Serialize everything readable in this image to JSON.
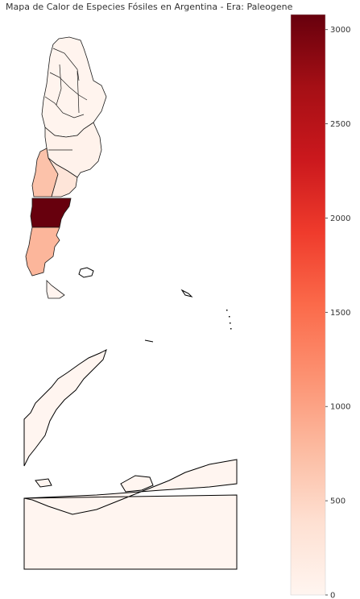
{
  "title": "Mapa de Calor de Especies Fósiles en Argentina - Era: Paleogene",
  "colormap": {
    "name": "Reds",
    "stops": [
      "#fff5f0",
      "#fee0d2",
      "#fcbba1",
      "#fc9272",
      "#fb6a4a",
      "#ef3b2c",
      "#cb181d",
      "#a50f15",
      "#67000d"
    ],
    "min": 0,
    "max": 3080,
    "ticks": [
      0,
      500,
      1000,
      1500,
      2000,
      2500,
      3000
    ]
  },
  "regions": [
    {
      "name": "north",
      "value": 20
    },
    {
      "name": "center",
      "value": 60
    },
    {
      "name": "neuquen",
      "value": 700
    },
    {
      "name": "rio-negro",
      "value": 300
    },
    {
      "name": "chubut",
      "value": 3080
    },
    {
      "name": "santa-cruz",
      "value": 820
    },
    {
      "name": "tierra-del-fuego",
      "value": 10
    },
    {
      "name": "antarctic-sector",
      "value": 10
    }
  ]
}
